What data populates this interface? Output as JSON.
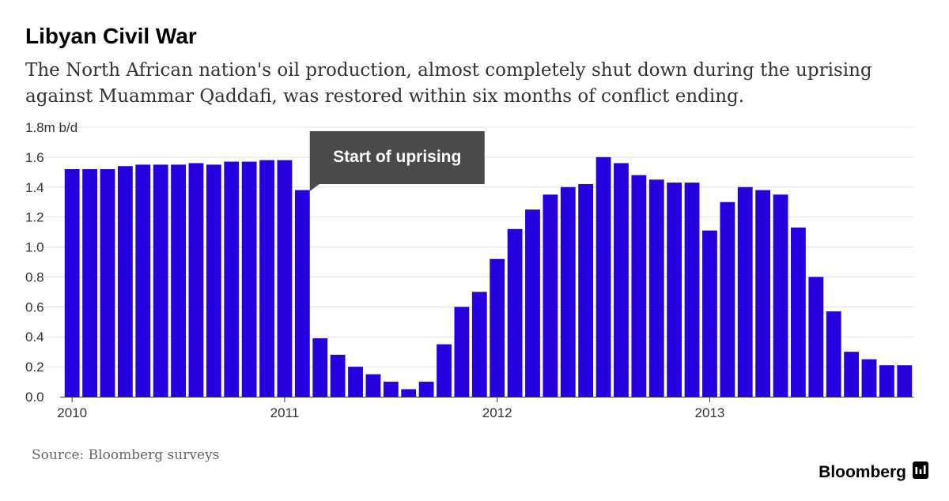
{
  "title": "Libyan Civil War",
  "subtitle": "The North African nation's oil production, almost completely shut down during the uprising against Muammar Qaddafi, was restored within six months of conflict ending.",
  "source": "Source: Bloomberg surveys",
  "brand": "Bloomberg",
  "colors": {
    "bar": "#2700e0",
    "grid": "#e2e2e2",
    "annotation_bg": "#4a4a4a",
    "text": "#333333"
  },
  "annotation": {
    "text": "Start of uprising",
    "category_index": 13
  },
  "chart_data": {
    "type": "bar",
    "title": "Libyan Civil War",
    "ylabel": "1.8m b/d",
    "xlabel": "",
    "ylim": [
      0,
      1.8
    ],
    "y_ticks": [
      {
        "value": 0.0,
        "label": "0.0"
      },
      {
        "value": 0.2,
        "label": "0.2"
      },
      {
        "value": 0.4,
        "label": "0.4"
      },
      {
        "value": 0.6,
        "label": "0.6"
      },
      {
        "value": 0.8,
        "label": "0.8"
      },
      {
        "value": 1.0,
        "label": "1.0"
      },
      {
        "value": 1.2,
        "label": "1.2"
      },
      {
        "value": 1.4,
        "label": "1.4"
      },
      {
        "value": 1.6,
        "label": "1.6"
      },
      {
        "value": 1.8,
        "label": "1.8m b/d"
      }
    ],
    "x_ticks": [
      {
        "index": 0,
        "label": "2010"
      },
      {
        "index": 12,
        "label": "2011"
      },
      {
        "index": 24,
        "label": "2012"
      },
      {
        "index": 36,
        "label": "2013"
      }
    ],
    "categories": [
      "Jan 2010",
      "Feb 2010",
      "Mar 2010",
      "Apr 2010",
      "May 2010",
      "Jun 2010",
      "Jul 2010",
      "Aug 2010",
      "Sep 2010",
      "Oct 2010",
      "Nov 2010",
      "Dec 2010",
      "Jan 2011",
      "Feb 2011",
      "Mar 2011",
      "Apr 2011",
      "May 2011",
      "Jun 2011",
      "Jul 2011",
      "Aug 2011",
      "Sep 2011",
      "Oct 2011",
      "Nov 2011",
      "Dec 2011",
      "Jan 2012",
      "Feb 2012",
      "Mar 2012",
      "Apr 2012",
      "May 2012",
      "Jun 2012",
      "Jul 2012",
      "Aug 2012",
      "Sep 2012",
      "Oct 2012",
      "Nov 2012",
      "Dec 2012",
      "Jan 2013",
      "Feb 2013",
      "Mar 2013",
      "Apr 2013",
      "May 2013",
      "Jun 2013",
      "Jul 2013",
      "Aug 2013",
      "Sep 2013",
      "Oct 2013",
      "Nov 2013",
      "Dec 2013"
    ],
    "values": [
      1.52,
      1.52,
      1.52,
      1.54,
      1.55,
      1.55,
      1.55,
      1.56,
      1.55,
      1.57,
      1.57,
      1.58,
      1.58,
      1.38,
      0.39,
      0.28,
      0.2,
      0.15,
      0.1,
      0.05,
      0.1,
      0.35,
      0.6,
      0.7,
      0.92,
      1.12,
      1.25,
      1.35,
      1.4,
      1.42,
      1.6,
      1.56,
      1.48,
      1.45,
      1.43,
      1.43,
      1.11,
      1.3,
      1.4,
      1.38,
      1.35,
      1.13,
      0.8,
      0.57,
      0.3,
      0.25,
      0.21,
      0.21
    ]
  }
}
